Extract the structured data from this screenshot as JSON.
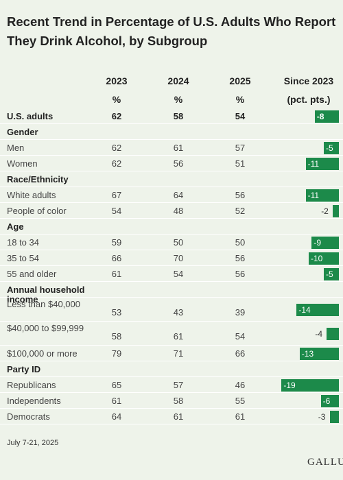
{
  "title": "Recent Trend in Percentage of U.S. Adults Who Report They Drink Alcohol, by Subgroup",
  "columns": {
    "y2023": "2023",
    "y2024": "2024",
    "y2025": "2025",
    "change": "Since 2023",
    "unit": "%",
    "change_unit": "(pct. pts.)"
  },
  "footnote": "July 7-21, 2025",
  "logo_text": "GALLUP",
  "bar_color": "#1c8a4a",
  "chart_data": {
    "type": "table",
    "title": "Recent Trend in Percentage of U.S. Adults Who Report They Drink Alcohol, by Subgroup",
    "rows": [
      {
        "kind": "total",
        "label": "U.S. adults",
        "v2023": "62",
        "v2024": "58",
        "v2025": "54",
        "change": -8,
        "change_label": "-8"
      },
      {
        "kind": "section",
        "label": "Gender"
      },
      {
        "kind": "item",
        "label": "Men",
        "v2023": "62",
        "v2024": "61",
        "v2025": "57",
        "change": -5,
        "change_label": "-5"
      },
      {
        "kind": "item",
        "label": "Women",
        "v2023": "62",
        "v2024": "56",
        "v2025": "51",
        "change": -11,
        "change_label": "-11"
      },
      {
        "kind": "section",
        "label": "Race/Ethnicity"
      },
      {
        "kind": "item",
        "label": "White adults",
        "v2023": "67",
        "v2024": "64",
        "v2025": "56",
        "change": -11,
        "change_label": "-11"
      },
      {
        "kind": "item",
        "label": "People of color",
        "v2023": "54",
        "v2024": "48",
        "v2025": "52",
        "change": -2,
        "change_label": "-2"
      },
      {
        "kind": "section",
        "label": "Age"
      },
      {
        "kind": "item",
        "label": "18 to 34",
        "v2023": "59",
        "v2024": "50",
        "v2025": "50",
        "change": -9,
        "change_label": "-9"
      },
      {
        "kind": "item",
        "label": "35 to 54",
        "v2023": "66",
        "v2024": "70",
        "v2025": "56",
        "change": -10,
        "change_label": "-10"
      },
      {
        "kind": "item",
        "label": "55 and older",
        "v2023": "61",
        "v2024": "54",
        "v2025": "56",
        "change": -5,
        "change_label": "-5"
      },
      {
        "kind": "section",
        "label": "Annual household income"
      },
      {
        "kind": "item",
        "label": "Less than $40,000",
        "v2023": "53",
        "v2024": "43",
        "v2025": "39",
        "change": -14,
        "change_label": "-14"
      },
      {
        "kind": "item",
        "label": "$40,000 to $99,999",
        "v2023": "58",
        "v2024": "61",
        "v2025": "54",
        "change": -4,
        "change_label": "-4"
      },
      {
        "kind": "item",
        "label": "$100,000 or more",
        "v2023": "79",
        "v2024": "71",
        "v2025": "66",
        "change": -13,
        "change_label": "-13"
      },
      {
        "kind": "section",
        "label": "Party ID"
      },
      {
        "kind": "item",
        "label": "Republicans",
        "v2023": "65",
        "v2024": "57",
        "v2025": "46",
        "change": -19,
        "change_label": "-19"
      },
      {
        "kind": "item",
        "label": "Independents",
        "v2023": "61",
        "v2024": "58",
        "v2025": "55",
        "change": -6,
        "change_label": "-6"
      },
      {
        "kind": "item",
        "label": "Democrats",
        "v2023": "64",
        "v2024": "61",
        "v2025": "61",
        "change": -3,
        "change_label": "-3"
      }
    ]
  }
}
